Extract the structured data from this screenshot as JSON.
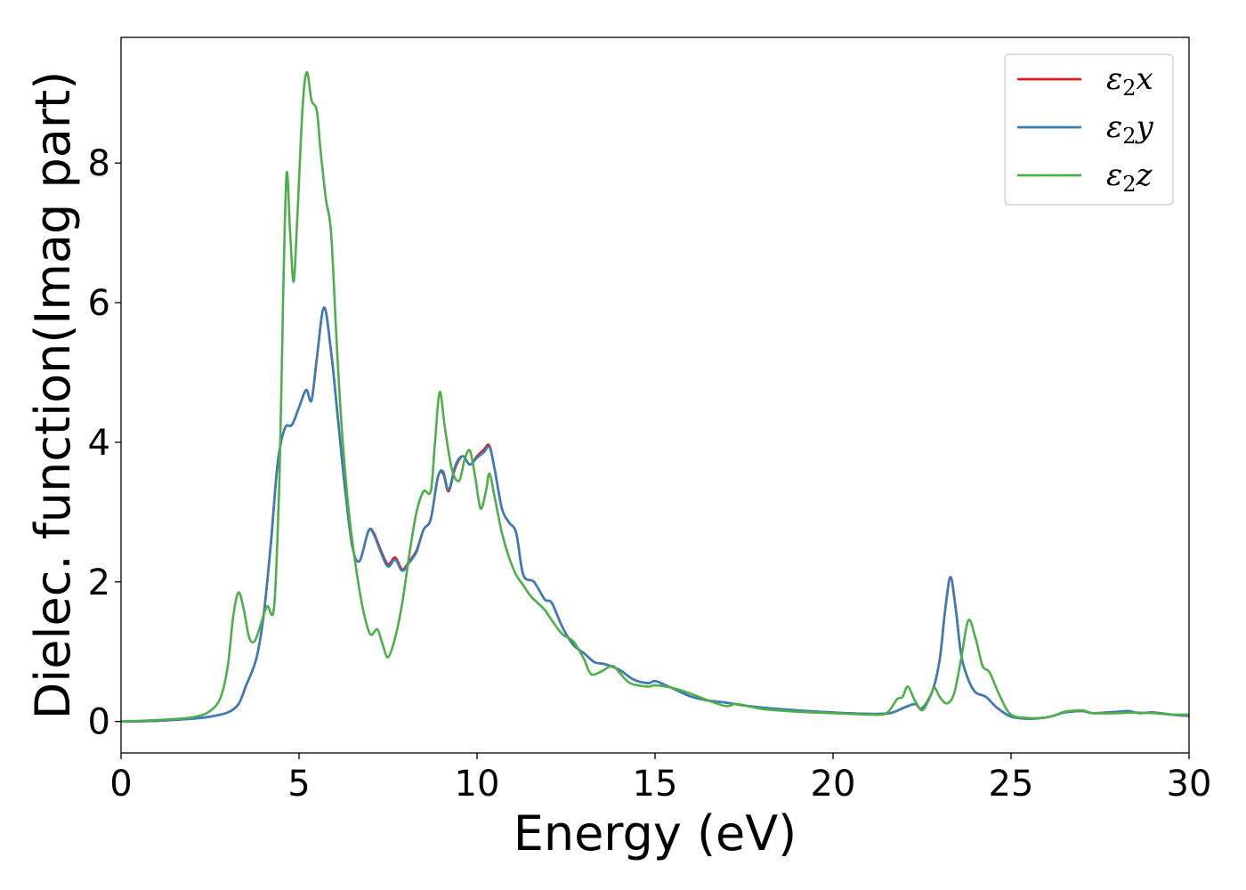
{
  "chart_data": {
    "type": "line",
    "xlabel": "Energy (eV)",
    "ylabel": "Dielec. function(Imag part)",
    "xlim": [
      0,
      30
    ],
    "ylim": [
      -0.45,
      9.8
    ],
    "xticks": [
      0,
      5,
      10,
      15,
      20,
      25,
      30
    ],
    "yticks": [
      0,
      2,
      4,
      6,
      8
    ],
    "grid": false,
    "legend_position": "top-right",
    "series": [
      {
        "name": "ε₂x",
        "legend_base": "ε",
        "legend_sub": "2",
        "legend_var": "x",
        "color": "#e41a1c",
        "points": [
          [
            0,
            0
          ],
          [
            1,
            0.01
          ],
          [
            2,
            0.04
          ],
          [
            2.5,
            0.07
          ],
          [
            3,
            0.13
          ],
          [
            3.3,
            0.25
          ],
          [
            3.5,
            0.5
          ],
          [
            3.8,
            0.9
          ],
          [
            4.0,
            1.5
          ],
          [
            4.2,
            2.5
          ],
          [
            4.4,
            3.7
          ],
          [
            4.6,
            4.2
          ],
          [
            4.8,
            4.25
          ],
          [
            5.0,
            4.5
          ],
          [
            5.2,
            4.75
          ],
          [
            5.35,
            4.6
          ],
          [
            5.5,
            5.2
          ],
          [
            5.7,
            5.93
          ],
          [
            5.9,
            5.3
          ],
          [
            6.1,
            4.3
          ],
          [
            6.3,
            3.3
          ],
          [
            6.5,
            2.5
          ],
          [
            6.7,
            2.3
          ],
          [
            6.95,
            2.73
          ],
          [
            7.1,
            2.7
          ],
          [
            7.3,
            2.45
          ],
          [
            7.5,
            2.25
          ],
          [
            7.7,
            2.35
          ],
          [
            7.9,
            2.18
          ],
          [
            8.1,
            2.3
          ],
          [
            8.3,
            2.45
          ],
          [
            8.5,
            2.75
          ],
          [
            8.7,
            2.9
          ],
          [
            8.9,
            3.5
          ],
          [
            9.05,
            3.55
          ],
          [
            9.2,
            3.3
          ],
          [
            9.4,
            3.65
          ],
          [
            9.6,
            3.8
          ],
          [
            9.8,
            3.68
          ],
          [
            10.0,
            3.8
          ],
          [
            10.2,
            3.9
          ],
          [
            10.35,
            3.95
          ],
          [
            10.5,
            3.6
          ],
          [
            10.7,
            3.05
          ],
          [
            10.9,
            2.85
          ],
          [
            11.1,
            2.7
          ],
          [
            11.3,
            2.1
          ],
          [
            11.6,
            2.0
          ],
          [
            11.9,
            1.75
          ],
          [
            12.1,
            1.7
          ],
          [
            12.4,
            1.35
          ],
          [
            12.7,
            1.1
          ],
          [
            13.0,
            0.98
          ],
          [
            13.3,
            0.85
          ],
          [
            13.6,
            0.82
          ],
          [
            14.0,
            0.74
          ],
          [
            14.4,
            0.6
          ],
          [
            14.8,
            0.55
          ],
          [
            15.0,
            0.58
          ],
          [
            15.3,
            0.52
          ],
          [
            15.6,
            0.45
          ],
          [
            16.0,
            0.36
          ],
          [
            16.5,
            0.3
          ],
          [
            17.0,
            0.27
          ],
          [
            17.5,
            0.23
          ],
          [
            18,
            0.2
          ],
          [
            19,
            0.16
          ],
          [
            20,
            0.13
          ],
          [
            21,
            0.11
          ],
          [
            21.6,
            0.12
          ],
          [
            22.0,
            0.2
          ],
          [
            22.3,
            0.25
          ],
          [
            22.5,
            0.19
          ],
          [
            22.8,
            0.45
          ],
          [
            23.0,
            0.9
          ],
          [
            23.15,
            1.6
          ],
          [
            23.3,
            2.05
          ],
          [
            23.45,
            1.6
          ],
          [
            23.6,
            0.95
          ],
          [
            23.8,
            0.6
          ],
          [
            24.0,
            0.42
          ],
          [
            24.3,
            0.35
          ],
          [
            24.6,
            0.2
          ],
          [
            25.0,
            0.07
          ],
          [
            25.5,
            0.04
          ],
          [
            26.0,
            0.06
          ],
          [
            26.3,
            0.1
          ],
          [
            26.5,
            0.13
          ],
          [
            27.0,
            0.15
          ],
          [
            27.3,
            0.12
          ],
          [
            28.0,
            0.14
          ],
          [
            28.3,
            0.15
          ],
          [
            28.6,
            0.12
          ],
          [
            29.0,
            0.13
          ],
          [
            29.5,
            0.1
          ],
          [
            30,
            0.08
          ]
        ]
      },
      {
        "name": "ε₂y",
        "legend_base": "ε",
        "legend_sub": "2",
        "legend_var": "y",
        "color": "#377eb8",
        "points": [
          [
            0,
            0
          ],
          [
            1,
            0.01
          ],
          [
            2,
            0.04
          ],
          [
            2.5,
            0.07
          ],
          [
            3,
            0.13
          ],
          [
            3.3,
            0.25
          ],
          [
            3.5,
            0.5
          ],
          [
            3.8,
            0.9
          ],
          [
            4.0,
            1.5
          ],
          [
            4.2,
            2.5
          ],
          [
            4.4,
            3.7
          ],
          [
            4.6,
            4.2
          ],
          [
            4.8,
            4.25
          ],
          [
            5.0,
            4.5
          ],
          [
            5.2,
            4.75
          ],
          [
            5.35,
            4.6
          ],
          [
            5.5,
            5.2
          ],
          [
            5.7,
            5.93
          ],
          [
            5.9,
            5.3
          ],
          [
            6.1,
            4.3
          ],
          [
            6.3,
            3.3
          ],
          [
            6.5,
            2.5
          ],
          [
            6.7,
            2.3
          ],
          [
            6.95,
            2.73
          ],
          [
            7.1,
            2.68
          ],
          [
            7.3,
            2.42
          ],
          [
            7.5,
            2.22
          ],
          [
            7.7,
            2.32
          ],
          [
            7.9,
            2.16
          ],
          [
            8.1,
            2.28
          ],
          [
            8.3,
            2.43
          ],
          [
            8.5,
            2.75
          ],
          [
            8.7,
            2.9
          ],
          [
            8.9,
            3.5
          ],
          [
            9.05,
            3.58
          ],
          [
            9.2,
            3.32
          ],
          [
            9.4,
            3.68
          ],
          [
            9.6,
            3.8
          ],
          [
            9.8,
            3.68
          ],
          [
            10.0,
            3.78
          ],
          [
            10.2,
            3.86
          ],
          [
            10.35,
            3.93
          ],
          [
            10.5,
            3.6
          ],
          [
            10.7,
            3.05
          ],
          [
            10.9,
            2.85
          ],
          [
            11.1,
            2.7
          ],
          [
            11.3,
            2.1
          ],
          [
            11.6,
            2.0
          ],
          [
            11.9,
            1.75
          ],
          [
            12.1,
            1.7
          ],
          [
            12.4,
            1.35
          ],
          [
            12.7,
            1.1
          ],
          [
            13.0,
            0.98
          ],
          [
            13.3,
            0.85
          ],
          [
            13.6,
            0.82
          ],
          [
            14.0,
            0.74
          ],
          [
            14.4,
            0.6
          ],
          [
            14.8,
            0.55
          ],
          [
            15.0,
            0.58
          ],
          [
            15.3,
            0.52
          ],
          [
            15.6,
            0.45
          ],
          [
            16.0,
            0.36
          ],
          [
            16.5,
            0.3
          ],
          [
            17.0,
            0.27
          ],
          [
            17.5,
            0.23
          ],
          [
            18,
            0.2
          ],
          [
            19,
            0.16
          ],
          [
            20,
            0.13
          ],
          [
            21,
            0.11
          ],
          [
            21.6,
            0.12
          ],
          [
            22.0,
            0.2
          ],
          [
            22.3,
            0.25
          ],
          [
            22.5,
            0.19
          ],
          [
            22.8,
            0.45
          ],
          [
            23.0,
            0.9
          ],
          [
            23.15,
            1.6
          ],
          [
            23.3,
            2.07
          ],
          [
            23.45,
            1.6
          ],
          [
            23.6,
            0.95
          ],
          [
            23.8,
            0.6
          ],
          [
            24.0,
            0.42
          ],
          [
            24.3,
            0.35
          ],
          [
            24.6,
            0.2
          ],
          [
            25.0,
            0.07
          ],
          [
            25.5,
            0.04
          ],
          [
            26.0,
            0.06
          ],
          [
            26.3,
            0.1
          ],
          [
            26.5,
            0.13
          ],
          [
            27.0,
            0.15
          ],
          [
            27.3,
            0.12
          ],
          [
            28.0,
            0.14
          ],
          [
            28.3,
            0.15
          ],
          [
            28.6,
            0.12
          ],
          [
            29.0,
            0.13
          ],
          [
            29.5,
            0.1
          ],
          [
            30,
            0.08
          ]
        ]
      },
      {
        "name": "ε₂z",
        "legend_base": "ε",
        "legend_sub": "2",
        "legend_var": "z",
        "color": "#4daf4a",
        "points": [
          [
            0,
            0
          ],
          [
            1,
            0.02
          ],
          [
            2,
            0.06
          ],
          [
            2.5,
            0.15
          ],
          [
            2.8,
            0.35
          ],
          [
            3.0,
            0.8
          ],
          [
            3.15,
            1.5
          ],
          [
            3.3,
            1.85
          ],
          [
            3.45,
            1.6
          ],
          [
            3.6,
            1.2
          ],
          [
            3.75,
            1.15
          ],
          [
            3.9,
            1.35
          ],
          [
            4.1,
            1.65
          ],
          [
            4.3,
            1.65
          ],
          [
            4.45,
            3.5
          ],
          [
            4.55,
            6.0
          ],
          [
            4.65,
            7.85
          ],
          [
            4.75,
            7.0
          ],
          [
            4.85,
            6.3
          ],
          [
            4.95,
            7.2
          ],
          [
            5.1,
            8.8
          ],
          [
            5.22,
            9.3
          ],
          [
            5.35,
            8.9
          ],
          [
            5.5,
            8.75
          ],
          [
            5.6,
            8.2
          ],
          [
            5.75,
            7.5
          ],
          [
            5.9,
            7.0
          ],
          [
            6.05,
            5.5
          ],
          [
            6.2,
            4.2
          ],
          [
            6.4,
            3.0
          ],
          [
            6.6,
            2.2
          ],
          [
            6.8,
            1.6
          ],
          [
            7.0,
            1.25
          ],
          [
            7.2,
            1.32
          ],
          [
            7.35,
            1.1
          ],
          [
            7.5,
            0.92
          ],
          [
            7.7,
            1.2
          ],
          [
            7.9,
            1.7
          ],
          [
            8.1,
            2.4
          ],
          [
            8.3,
            3.0
          ],
          [
            8.5,
            3.3
          ],
          [
            8.7,
            3.3
          ],
          [
            8.82,
            4.0
          ],
          [
            8.95,
            4.72
          ],
          [
            9.1,
            4.2
          ],
          [
            9.3,
            3.6
          ],
          [
            9.5,
            3.45
          ],
          [
            9.65,
            3.75
          ],
          [
            9.8,
            3.88
          ],
          [
            9.95,
            3.5
          ],
          [
            10.1,
            3.05
          ],
          [
            10.25,
            3.3
          ],
          [
            10.35,
            3.55
          ],
          [
            10.5,
            3.2
          ],
          [
            10.7,
            2.7
          ],
          [
            10.9,
            2.35
          ],
          [
            11.1,
            2.1
          ],
          [
            11.3,
            1.95
          ],
          [
            11.5,
            1.8
          ],
          [
            11.7,
            1.7
          ],
          [
            11.9,
            1.6
          ],
          [
            12.1,
            1.45
          ],
          [
            12.4,
            1.25
          ],
          [
            12.7,
            1.15
          ],
          [
            13.0,
            0.9
          ],
          [
            13.2,
            0.68
          ],
          [
            13.5,
            0.72
          ],
          [
            13.8,
            0.8
          ],
          [
            14.0,
            0.7
          ],
          [
            14.3,
            0.55
          ],
          [
            14.8,
            0.5
          ],
          [
            15.0,
            0.52
          ],
          [
            15.5,
            0.48
          ],
          [
            16.0,
            0.4
          ],
          [
            16.5,
            0.3
          ],
          [
            17.0,
            0.22
          ],
          [
            17.3,
            0.25
          ],
          [
            18,
            0.18
          ],
          [
            19,
            0.14
          ],
          [
            20,
            0.12
          ],
          [
            21,
            0.1
          ],
          [
            21.5,
            0.12
          ],
          [
            21.8,
            0.32
          ],
          [
            21.95,
            0.35
          ],
          [
            22.1,
            0.5
          ],
          [
            22.3,
            0.3
          ],
          [
            22.5,
            0.16
          ],
          [
            22.7,
            0.32
          ],
          [
            22.85,
            0.48
          ],
          [
            23.0,
            0.35
          ],
          [
            23.2,
            0.26
          ],
          [
            23.4,
            0.4
          ],
          [
            23.6,
            0.9
          ],
          [
            23.8,
            1.45
          ],
          [
            24.0,
            1.2
          ],
          [
            24.2,
            0.8
          ],
          [
            24.4,
            0.7
          ],
          [
            24.7,
            0.35
          ],
          [
            25.0,
            0.1
          ],
          [
            25.5,
            0.05
          ],
          [
            26.0,
            0.06
          ],
          [
            26.3,
            0.1
          ],
          [
            26.5,
            0.14
          ],
          [
            27.0,
            0.16
          ],
          [
            27.3,
            0.12
          ],
          [
            28.0,
            0.12
          ],
          [
            28.5,
            0.13
          ],
          [
            29.0,
            0.12
          ],
          [
            29.5,
            0.1
          ],
          [
            30,
            0.1
          ]
        ]
      }
    ]
  }
}
